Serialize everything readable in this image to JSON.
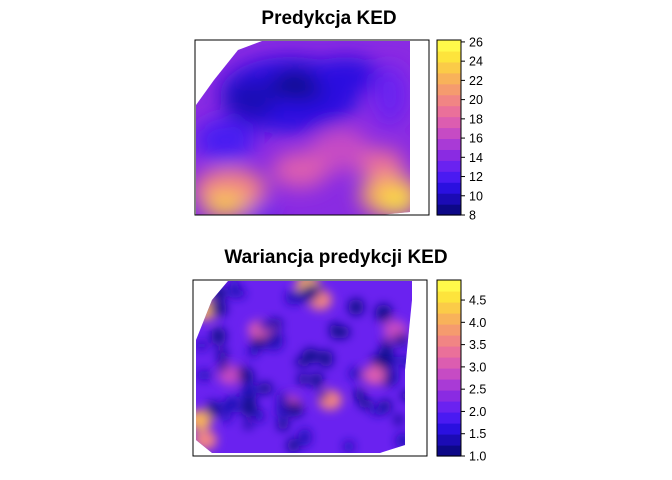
{
  "palette": [
    "#0D0887",
    "#1B0BB5",
    "#2A10E0",
    "#4A1AF2",
    "#6A22F0",
    "#8A2BE2",
    "#A93AD6",
    "#C64BC4",
    "#DC5DB0",
    "#EA709A",
    "#F18584",
    "#F59B6E",
    "#F8B25A",
    "#FBCB48",
    "#FDE43C",
    "#FFF94A"
  ],
  "chart_data": [
    {
      "type": "heatmap",
      "title": "Predykcja KED",
      "legend": {
        "position": "right",
        "range": [
          8,
          26.2
        ],
        "ticks": [
          "8",
          "10",
          "12",
          "14",
          "16",
          "18",
          "20",
          "22",
          "24",
          "26"
        ],
        "tick_values": [
          8,
          10,
          12,
          14,
          16,
          18,
          20,
          22,
          24,
          26
        ]
      },
      "summary": {
        "value_min": 8,
        "value_max": 26,
        "low_region": "upper-left centre (dark blue, ~8-10)",
        "high_regions": [
          "lower-right corner (~24-26)",
          "lower-left corner (~22-24)"
        ]
      }
    },
    {
      "type": "heatmap",
      "title": "Wariancja predykcji KED",
      "legend": {
        "position": "right",
        "range": [
          1.0,
          4.95
        ],
        "ticks": [
          "1.0",
          "1.5",
          "2.0",
          "2.5",
          "3.0",
          "3.5",
          "4.0",
          "4.5"
        ],
        "tick_values": [
          1.0,
          1.5,
          2.0,
          2.5,
          3.0,
          3.5,
          4.0,
          4.5
        ]
      },
      "summary": {
        "value_min": 1.0,
        "value_max": 4.9,
        "low_regions": "many dark spots around sampling points (~1.0-1.5)",
        "high_regions": "domain edges and gaps between points (~3.5-4.9)"
      }
    }
  ]
}
